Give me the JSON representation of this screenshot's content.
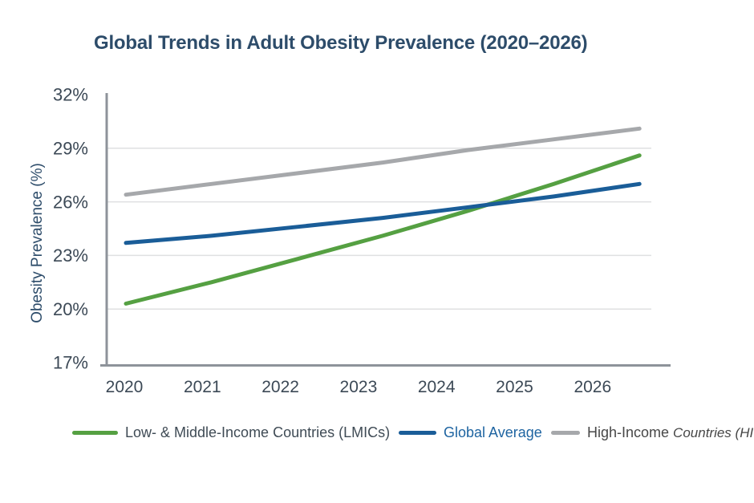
{
  "header": {
    "title": "Global Trends in Adult Obesity Prevalence (2020–2026)"
  },
  "chart_data": {
    "type": "line",
    "title": "Global Trends in Adult Obesity Prevalence (2020–2026)",
    "xlabel": "",
    "ylabel": "Obesity Prevalence (%)",
    "x": [
      2020,
      2021,
      2022,
      2023,
      2024,
      2025,
      2026
    ],
    "x_tick_labels": [
      "2020",
      "2021",
      "2022",
      "2023",
      "2024",
      "2025",
      "2026"
    ],
    "series": [
      {
        "name": "Low- & Middle-Income Countries (LMICs)",
        "color": "#55a042",
        "values": [
          20.3,
          21.5,
          22.8,
          24.1,
          25.5,
          27.0,
          28.6
        ]
      },
      {
        "name": "Global Average",
        "color": "#1a5d98",
        "values": [
          23.7,
          24.1,
          24.6,
          25.1,
          25.7,
          26.3,
          27.0
        ]
      },
      {
        "name": "High-Income Countries (HICs)",
        "color": "#a6a8ab",
        "values": [
          26.4,
          27.0,
          27.6,
          28.2,
          28.9,
          29.5,
          30.1
        ]
      }
    ],
    "ylim": [
      17,
      32
    ],
    "yticks": [
      32,
      29,
      26,
      23,
      20,
      17
    ],
    "ytick_labels": [
      "32%",
      "29%",
      "26%",
      "23%",
      "20%",
      "17%"
    ],
    "gridline_values": [
      29,
      26,
      23,
      20
    ],
    "grid": "horizontal-only",
    "legend_position": "bottom"
  },
  "legend": {
    "hic_prefix": "High-Income ",
    "hic_italic": "Countries (HICs)"
  },
  "ui_colors": {
    "title_text": "#2d4c6a",
    "axis_label_text": "#2d4c6a",
    "tick_text": "#3c4956",
    "axis_line": "#8e939a",
    "gridline": "#dfe0e1",
    "lmics_line": "#55a042",
    "global_avg_line": "#1a5d98",
    "hics_line": "#a6a8ab",
    "global_avg_legend_text": "#1e64a1"
  }
}
